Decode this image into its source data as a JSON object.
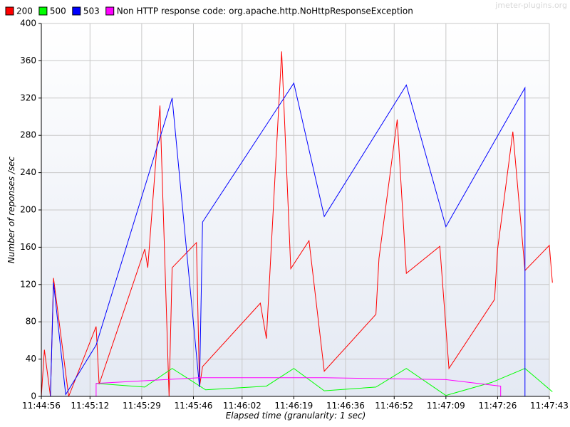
{
  "watermark": "jmeter-plugins.org",
  "colors": {
    "background": "#ffffff",
    "plot_background_top": "#ffffff",
    "plot_background_bottom": "#e4e9f3",
    "grid": "#c8c8c8",
    "axis": "#000000"
  },
  "chart_data": {
    "type": "line",
    "xlabel": "Elapsed time (granularity: 1 sec)",
    "ylabel": "Number of reponses /sec",
    "ylim": [
      0,
      400
    ],
    "xlim": [
      "11:44:56",
      "11:47:43"
    ],
    "yticks": [
      0,
      40,
      80,
      120,
      160,
      200,
      240,
      280,
      320,
      360,
      400
    ],
    "xticks": [
      "11:44:56",
      "11:45:12",
      "11:45:29",
      "11:45:46",
      "11:46:02",
      "11:46:19",
      "11:46:36",
      "11:46:52",
      "11:47:09",
      "11:47:26",
      "11:47:43"
    ],
    "grid": true,
    "legend_position": "top",
    "series": [
      {
        "name": "200",
        "color": "#ff0000",
        "points": [
          [
            "11:44:56",
            0
          ],
          [
            "11:44:57",
            50
          ],
          [
            "11:44:59",
            0
          ],
          [
            "11:45:00",
            127
          ],
          [
            "11:45:05",
            0
          ],
          [
            "11:45:14",
            75
          ],
          [
            "11:45:15",
            13
          ],
          [
            "11:45:30",
            158
          ],
          [
            "11:45:31",
            138
          ],
          [
            "11:45:35",
            312
          ],
          [
            "11:45:38",
            0
          ],
          [
            "11:45:39",
            138
          ],
          [
            "11:45:47",
            165
          ],
          [
            "11:45:48",
            10
          ],
          [
            "11:45:49",
            32
          ],
          [
            "11:46:08",
            100
          ],
          [
            "11:46:10",
            62
          ],
          [
            "11:46:15",
            370
          ],
          [
            "11:46:18",
            137
          ],
          [
            "11:46:24",
            167
          ],
          [
            "11:46:29",
            27
          ],
          [
            "11:46:46",
            88
          ],
          [
            "11:46:47",
            148
          ],
          [
            "11:46:53",
            297
          ],
          [
            "11:46:56",
            132
          ],
          [
            "11:47:07",
            161
          ],
          [
            "11:47:10",
            30
          ],
          [
            "11:47:25",
            104
          ],
          [
            "11:47:26",
            158
          ],
          [
            "11:47:31",
            284
          ],
          [
            "11:47:35",
            135
          ],
          [
            "11:47:43",
            162
          ],
          [
            "11:47:44",
            122
          ]
        ]
      },
      {
        "name": "500",
        "color": "#00ff00",
        "points": [
          [
            "11:45:14",
            14
          ],
          [
            "11:45:30",
            10
          ],
          [
            "11:45:39",
            30
          ],
          [
            "11:45:50",
            7
          ],
          [
            "11:46:10",
            11
          ],
          [
            "11:46:19",
            30
          ],
          [
            "11:46:29",
            6
          ],
          [
            "11:46:46",
            10
          ],
          [
            "11:46:56",
            30
          ],
          [
            "11:47:09",
            1
          ],
          [
            "11:47:24",
            15
          ],
          [
            "11:47:35",
            30
          ],
          [
            "11:47:44",
            5
          ]
        ]
      },
      {
        "name": "503",
        "color": "#0000ff",
        "points": [
          [
            "11:44:59",
            0
          ],
          [
            "11:45:00",
            122
          ],
          [
            "11:45:04",
            2
          ],
          [
            "11:45:14",
            55
          ],
          [
            "11:45:39",
            320
          ],
          [
            "11:45:48",
            10
          ],
          [
            "11:45:49",
            187
          ],
          [
            "11:46:19",
            336
          ],
          [
            "11:46:29",
            193
          ],
          [
            "11:46:56",
            334
          ],
          [
            "11:47:09",
            182
          ],
          [
            "11:47:35",
            331
          ],
          [
            "11:47:35",
            0
          ]
        ]
      },
      {
        "name": "Non HTTP response code: org.apache.http.NoHttpResponseException",
        "color": "#ff00ff",
        "points": [
          [
            "11:45:14",
            0
          ],
          [
            "11:45:14",
            14
          ],
          [
            "11:45:48",
            20
          ],
          [
            "11:46:29",
            20
          ],
          [
            "11:47:09",
            18
          ],
          [
            "11:47:27",
            11
          ],
          [
            "11:47:27",
            0
          ]
        ]
      }
    ]
  }
}
